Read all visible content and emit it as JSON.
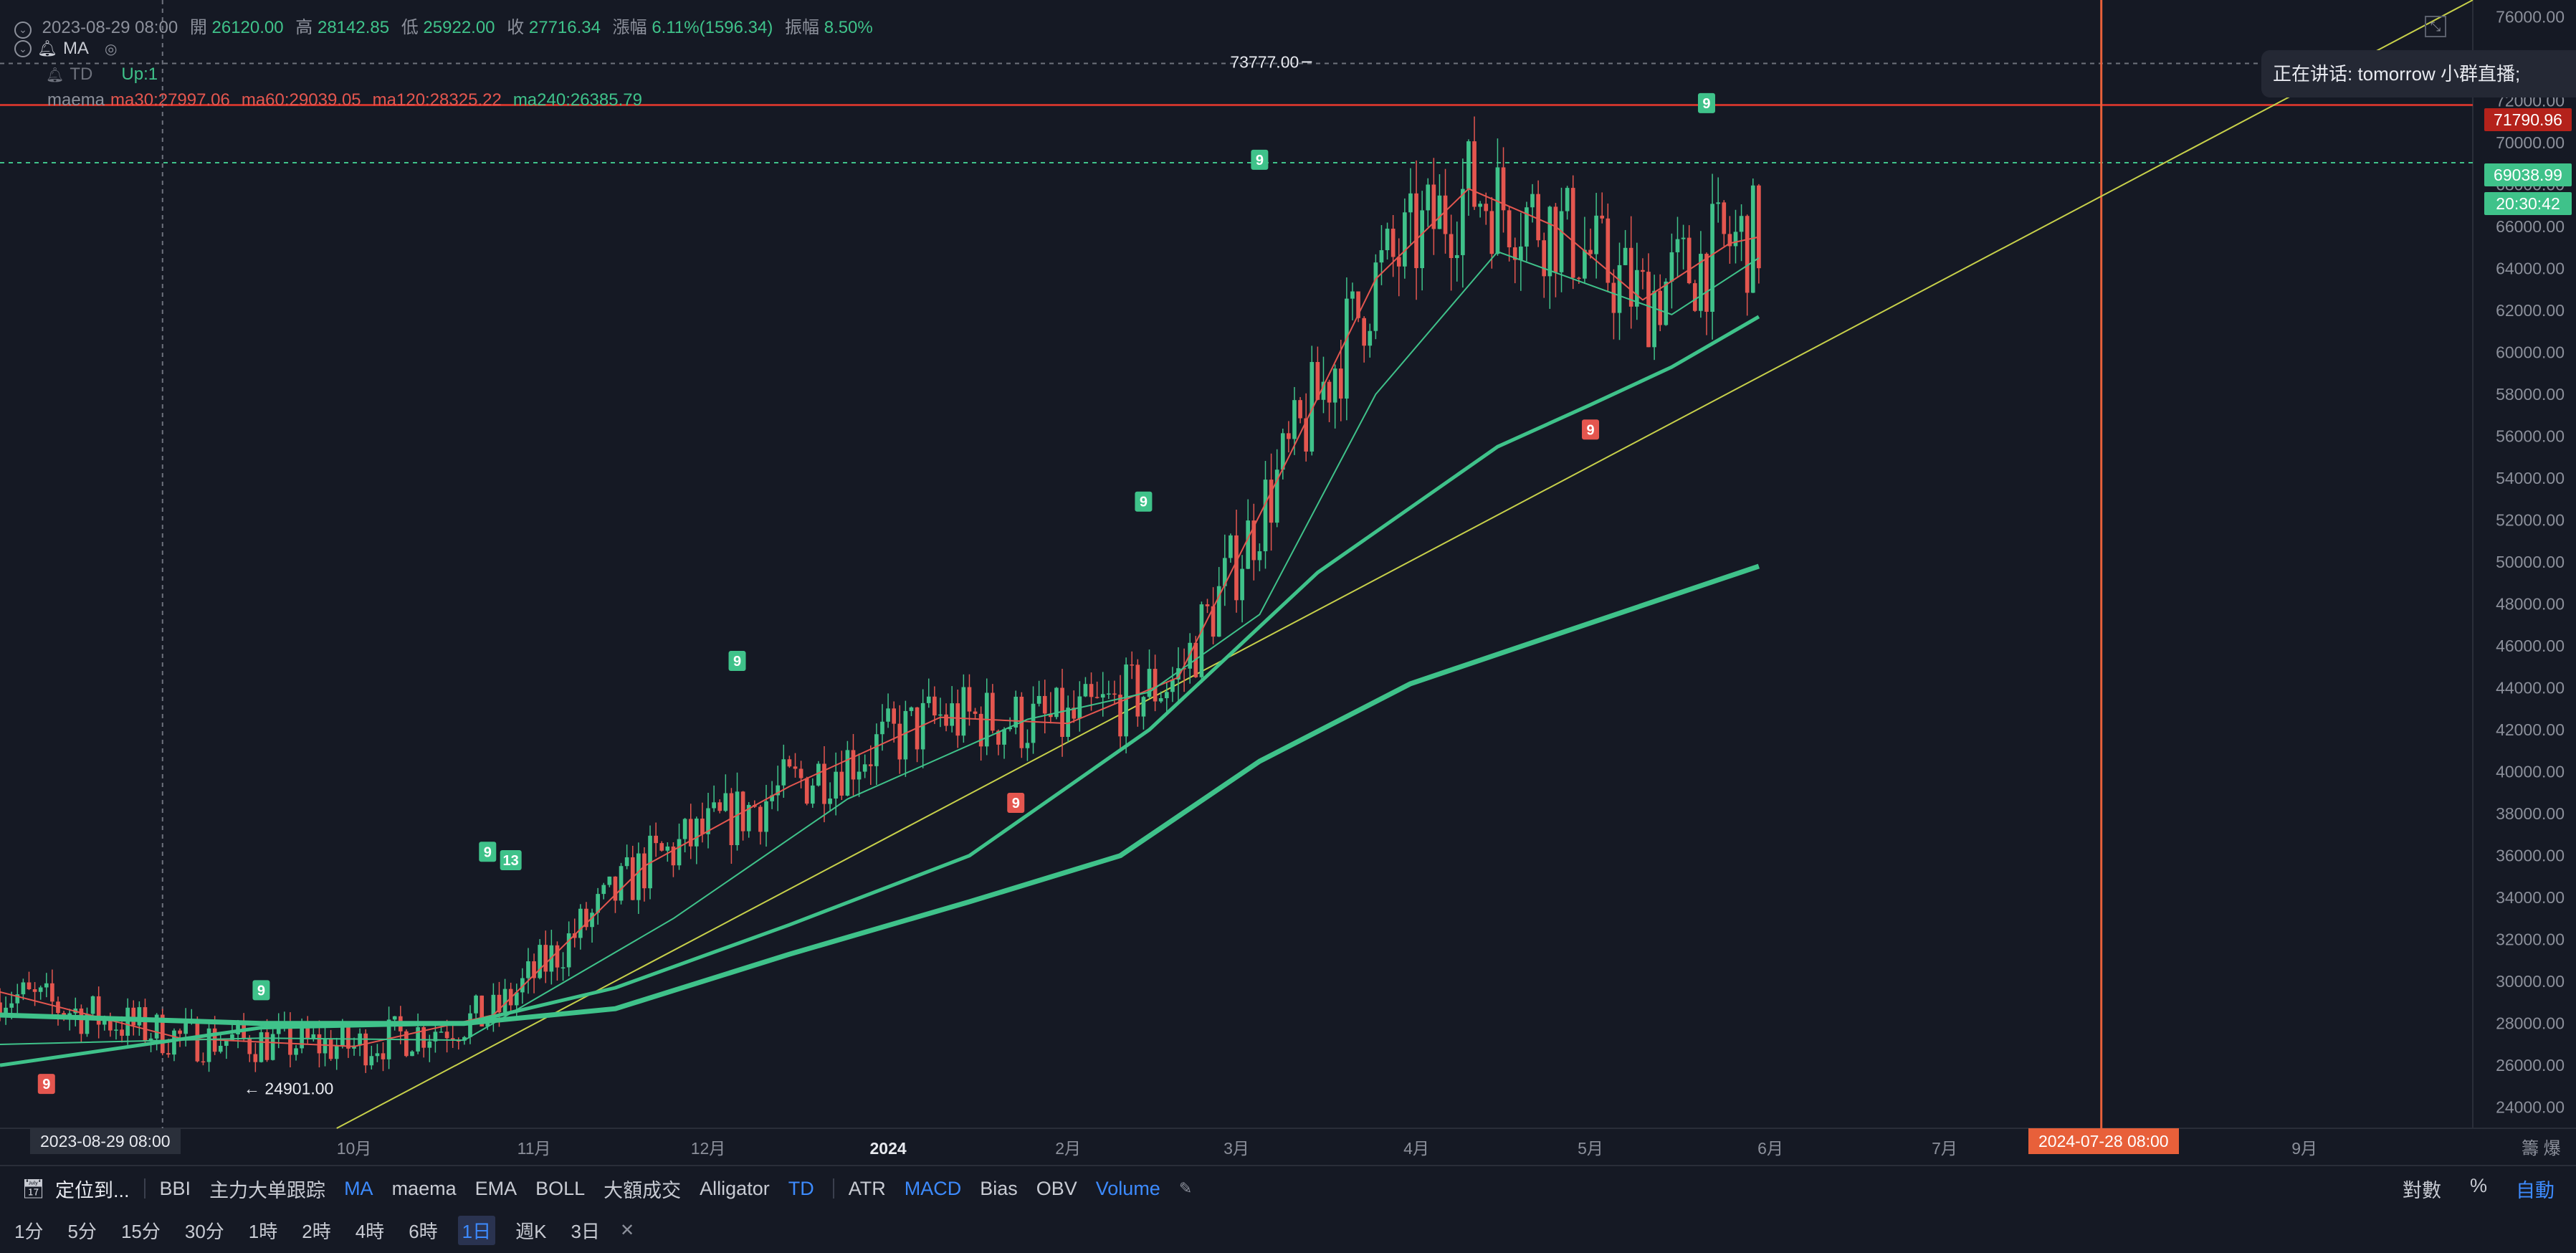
{
  "header": {
    "date": "2023-08-29 08:00",
    "open_label": "開",
    "open": "26120.00",
    "high_label": "高",
    "high": "28142.85",
    "low_label": "低",
    "low": "25922.00",
    "close_label": "收",
    "close": "27716.34",
    "change_label": "漲幅",
    "change": "6.11%(1596.34)",
    "amp_label": "振幅",
    "amp": "8.50%"
  },
  "indicators": {
    "ma_label": "MA",
    "td_label": "TD",
    "td_value": "Up:1",
    "maema_label": "maema",
    "ma30": "ma30:27997.06",
    "ma60": "ma60:29039.05",
    "ma120": "ma120:28325.22",
    "ma240": "ma240:26385.79"
  },
  "colors": {
    "background": "#151924",
    "up": "#3fc28a",
    "down": "#e4564f",
    "ma30": "#e4564f",
    "ma60": "#3fc28a",
    "trendline": "#c7d04a",
    "alert_line": "#c9342c",
    "vertical_marker": "#e8603a",
    "accent": "#3d8bff"
  },
  "chart_data": {
    "type": "candlestick",
    "x_range": [
      "2023-08-01",
      "2024-09-30"
    ],
    "y_range": [
      23000,
      76800
    ],
    "series": [
      {
        "name": "ma30",
        "points": [
          [
            "2023-08-01",
            29500
          ],
          [
            "2023-09-01",
            27300
          ],
          [
            "2023-10-01",
            26900
          ],
          [
            "2023-10-25",
            28400
          ],
          [
            "2023-11-20",
            35500
          ],
          [
            "2023-12-15",
            39300
          ],
          [
            "2024-01-10",
            42600
          ],
          [
            "2024-02-01",
            42300
          ],
          [
            "2024-02-20",
            44500
          ],
          [
            "2024-03-10",
            55000
          ],
          [
            "2024-03-25",
            63500
          ],
          [
            "2024-04-10",
            67800
          ],
          [
            "2024-04-25",
            66000
          ],
          [
            "2024-05-10",
            62500
          ],
          [
            "2024-05-25",
            65200
          ],
          [
            "2024-05-30",
            65500
          ]
        ]
      },
      {
        "name": "ma60",
        "points": [
          [
            "2023-08-01",
            27000
          ],
          [
            "2023-09-15",
            27300
          ],
          [
            "2023-10-20",
            27200
          ],
          [
            "2023-11-25",
            33000
          ],
          [
            "2023-12-25",
            38700
          ],
          [
            "2024-01-25",
            42500
          ],
          [
            "2024-02-15",
            43800
          ],
          [
            "2024-03-05",
            47500
          ],
          [
            "2024-03-25",
            58000
          ],
          [
            "2024-04-15",
            64800
          ],
          [
            "2024-05-01",
            63200
          ],
          [
            "2024-05-15",
            61800
          ],
          [
            "2024-05-30",
            64500
          ]
        ]
      },
      {
        "name": "ma120",
        "points": [
          [
            "2023-08-01",
            26000
          ],
          [
            "2023-09-15",
            27800
          ],
          [
            "2023-10-20",
            28000
          ],
          [
            "2023-11-15",
            29700
          ],
          [
            "2023-12-15",
            32700
          ],
          [
            "2024-01-15",
            36000
          ],
          [
            "2024-02-15",
            42000
          ],
          [
            "2024-03-15",
            49500
          ],
          [
            "2024-04-15",
            55500
          ],
          [
            "2024-05-01",
            57500
          ],
          [
            "2024-05-15",
            59300
          ],
          [
            "2024-05-30",
            61700
          ]
        ]
      },
      {
        "name": "ma240",
        "points": [
          [
            "2023-08-01",
            28400
          ],
          [
            "2023-09-15",
            28000
          ],
          [
            "2023-10-20",
            28000
          ],
          [
            "2023-11-15",
            28700
          ],
          [
            "2023-12-15",
            31300
          ],
          [
            "2024-01-15",
            33800
          ],
          [
            "2024-02-10",
            36000
          ],
          [
            "2024-03-05",
            40500
          ],
          [
            "2024-03-31",
            44200
          ],
          [
            "2024-04-30",
            47000
          ],
          [
            "2024-05-30",
            49800
          ]
        ]
      }
    ],
    "price_ticks": [
      "76000.00",
      "74000.00",
      "72000.00",
      "70000.00",
      "68000.00",
      "66000.00",
      "64000.00",
      "62000.00",
      "60000.00",
      "58000.00",
      "56000.00",
      "54000.00",
      "52000.00",
      "50000.00",
      "48000.00",
      "46000.00",
      "44000.00",
      "42000.00",
      "40000.00",
      "38000.00",
      "36000.00",
      "34000.00",
      "32000.00",
      "30000.00",
      "28000.00",
      "26000.00",
      "24000.00"
    ],
    "time_ticks": [
      {
        "date": "2023-10-01",
        "label": "10月"
      },
      {
        "date": "2023-11-01",
        "label": "11月"
      },
      {
        "date": "2023-12-01",
        "label": "12月"
      },
      {
        "date": "2024-01-01",
        "label": "2024"
      },
      {
        "date": "2024-02-01",
        "label": "2月"
      },
      {
        "date": "2024-03-01",
        "label": "3月"
      },
      {
        "date": "2024-04-01",
        "label": "4月"
      },
      {
        "date": "2024-05-01",
        "label": "5月"
      },
      {
        "date": "2024-06-01",
        "label": "6月"
      },
      {
        "date": "2024-07-01",
        "label": "7月"
      },
      {
        "date": "2024-09-01",
        "label": "9月"
      }
    ],
    "markers": [
      {
        "date": "2023-08-09",
        "price": 25800,
        "label": "9",
        "color": "down",
        "pos": "below"
      },
      {
        "date": "2023-09-15",
        "price": 28900,
        "label": "9",
        "color": "up",
        "pos": "above"
      },
      {
        "date": "2023-10-24",
        "price": 35500,
        "label": "9",
        "color": "up",
        "pos": "above"
      },
      {
        "date": "2023-10-28",
        "price": 35100,
        "label": "13",
        "color": "up",
        "pos": "above"
      },
      {
        "date": "2023-12-06",
        "price": 44600,
        "label": "9",
        "color": "up",
        "pos": "above"
      },
      {
        "date": "2024-01-23",
        "price": 39200,
        "label": "9",
        "color": "down",
        "pos": "below"
      },
      {
        "date": "2024-02-14",
        "price": 52200,
        "label": "9",
        "color": "up",
        "pos": "above"
      },
      {
        "date": "2024-03-05",
        "price": 68500,
        "label": "9",
        "color": "up",
        "pos": "above"
      },
      {
        "date": "2024-05-01",
        "price": 57000,
        "label": "9",
        "color": "down",
        "pos": "below"
      },
      {
        "date": "2024-05-21",
        "price": 71200,
        "label": "9",
        "color": "up",
        "pos": "above"
      }
    ],
    "annotations": {
      "high_value": "73777.00",
      "high_date": "2024-03-14",
      "high_price": 73777,
      "low_value": "24901.00",
      "low_date": "2023-09-11",
      "low_price": 24901
    },
    "trendline": {
      "from": [
        "2023-09-28",
        23000
      ],
      "to": [
        "2024-09-30",
        76800
      ]
    },
    "alert_price": 71790.96,
    "last_price": 69038.99,
    "crosshair_date": "2023-08-29",
    "vertical_marker_date": "2024-07-28"
  },
  "price_tags": {
    "alert": "71790.96",
    "last": "69038.99",
    "countdown": "20:30:42"
  },
  "time_axis": {
    "crosshair_label": "2023-08-29 08:00",
    "marker_label": "2024-07-28 08:00",
    "right_icons": "籌 爆"
  },
  "popup": {
    "text": "正在讲话:   tomorrow 小群直播;"
  },
  "toolbar": {
    "locate": "定位到...",
    "items": [
      "BBI",
      "主力大单跟踪",
      "MA",
      "maema",
      "EMA",
      "BOLL",
      "大額成交",
      "Alligator",
      "TD",
      "ATR",
      "MACD",
      "Bias",
      "OBV",
      "Volume"
    ],
    "active": [
      "MA",
      "TD",
      "MACD",
      "Volume"
    ],
    "right": [
      "對數",
      "%",
      "自動"
    ]
  },
  "intervals": {
    "items": [
      "1分",
      "5分",
      "15分",
      "30分",
      "1時",
      "2時",
      "4時",
      "6時",
      "1日",
      "週K",
      "3日"
    ],
    "selected": "1日"
  }
}
